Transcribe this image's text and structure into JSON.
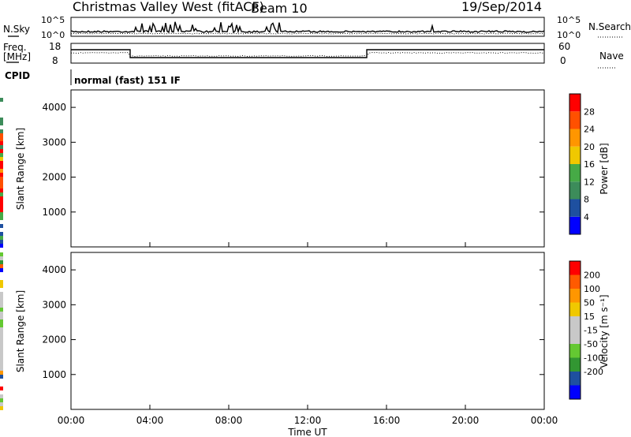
{
  "header": {
    "station": "Christmas Valley West (fitACF)",
    "beam": "Beam 10",
    "date": "19/Sep/2014"
  },
  "top_panel": {
    "left_label": "N.Sky",
    "right_label": "N.Search",
    "left_ticks": [
      "10^5",
      "10^0"
    ],
    "right_ticks": [
      "10^5",
      "10^0"
    ]
  },
  "freq_panel": {
    "left_label_1": "Freq.",
    "left_label_2": "[MHz]",
    "right_label": "Nave",
    "left_ticks": [
      "18",
      "8"
    ],
    "right_ticks": [
      "60",
      "0"
    ]
  },
  "cpid": {
    "label": "CPID",
    "value": "normal (fast) 151 IF"
  },
  "colors": {
    "power_scale": [
      "#0000ff",
      "#1e50a0",
      "#3c8c5a",
      "#46aa46",
      "#f0c800",
      "#ff9600",
      "#ff5000",
      "#ff0000"
    ],
    "velocity_scale": [
      "#ff0000",
      "#ff5a00",
      "#ff9600",
      "#f0c800",
      "#c8c8c8",
      "#c8c8c8",
      "#64c832",
      "#329632",
      "#1e50a0",
      "#0000ff"
    ],
    "gray": "#c8c8c8"
  },
  "chart_data": [
    {
      "type": "heatmap",
      "panel": "power",
      "ylabel": "Slant Range [km]",
      "ylim": [
        0,
        4500
      ],
      "yticks": [
        "1000",
        "2000",
        "3000",
        "4000"
      ],
      "xlim": [
        "00:00",
        "24:00"
      ],
      "colorbar": {
        "label": "Power [dB]",
        "range": [
          0,
          32
        ],
        "ticks": [
          "4",
          "8",
          "12",
          "16",
          "20",
          "24",
          "28"
        ]
      }
    },
    {
      "type": "heatmap",
      "panel": "velocity",
      "ylabel": "Slant Range [km]",
      "ylim": [
        0,
        4500
      ],
      "yticks": [
        "1000",
        "2000",
        "3000",
        "4000"
      ],
      "xlim": [
        "00:00",
        "24:00"
      ],
      "xticks": [
        "00:00",
        "04:00",
        "08:00",
        "12:00",
        "16:00",
        "20:00",
        "00:00"
      ],
      "xlabel": "Time UT",
      "colorbar": {
        "label": "Velocity [m s⁻¹]",
        "ticks": [
          "200",
          "100",
          "50",
          "15",
          "-15",
          "-50",
          "-100",
          "-200"
        ]
      }
    }
  ]
}
